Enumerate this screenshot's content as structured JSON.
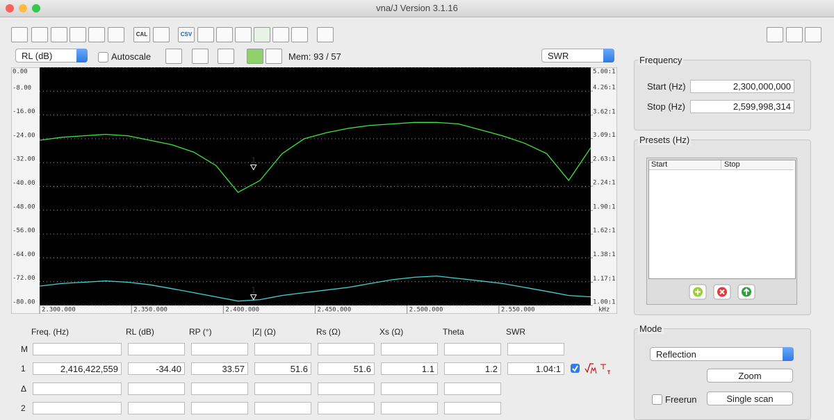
{
  "window": {
    "title": "vna/J Version 3.1.16"
  },
  "toolbar": {
    "labels": [
      "CAL",
      "CSV"
    ]
  },
  "controls": {
    "left_select": "RL (dB)",
    "autoscale": "Autoscale",
    "memory": "Mem: 93 / 57",
    "right_select": "SWR"
  },
  "chart_data": {
    "type": "line",
    "x_unit": "kHz",
    "x": [
      2300000,
      2312000,
      2324000,
      2336000,
      2348000,
      2360000,
      2372000,
      2384000,
      2396000,
      2408000,
      2420000,
      2432000,
      2444000,
      2456000,
      2468000,
      2480000,
      2492000,
      2504000,
      2516000,
      2528000,
      2540000,
      2552000,
      2564000,
      2576000,
      2588000,
      2600000
    ],
    "series": [
      {
        "color": "#3ce83c",
        "values": [
          -24.5,
          -23.5,
          -23,
          -22.5,
          -23,
          -24.5,
          -26,
          -28.5,
          -33,
          -42,
          -38,
          -29,
          -24,
          -22,
          -20.5,
          -19.5,
          -19,
          -18.5,
          -18.5,
          -19,
          -21,
          -23,
          -25.5,
          -29,
          -38,
          -27
        ]
      },
      {
        "color": "#3fd6d6",
        "axis": "y2",
        "values": [
          1.14,
          1.16,
          1.17,
          1.18,
          1.17,
          1.15,
          1.12,
          1.09,
          1.06,
          1.03,
          1.04,
          1.07,
          1.09,
          1.11,
          1.13,
          1.16,
          1.19,
          1.21,
          1.22,
          1.2,
          1.18,
          1.16,
          1.13,
          1.1,
          1.07,
          1.06
        ]
      }
    ],
    "markers": [
      {
        "label": "1",
        "x": 2416422.559,
        "rl": -34.4,
        "swr": 1.04
      }
    ],
    "xlim": [
      2300000,
      2600000
    ],
    "xticks": [
      {
        "value": 2300000,
        "label": "2.300.000"
      },
      {
        "value": 2350000,
        "label": "2.350.000"
      },
      {
        "value": 2400000,
        "label": "2.400.000"
      },
      {
        "value": 2450000,
        "label": "2.450.000"
      },
      {
        "value": 2500000,
        "label": "2.500.000"
      },
      {
        "value": 2550000,
        "label": "2.550.000"
      }
    ],
    "ylim": [
      -80,
      0
    ],
    "yticks": [
      {
        "value": 0,
        "label": "0.00"
      },
      {
        "value": -8,
        "label": "-8.00"
      },
      {
        "value": -16,
        "label": "-16.00"
      },
      {
        "value": -24,
        "label": "-24.00"
      },
      {
        "value": -32,
        "label": "-32.00"
      },
      {
        "value": -40,
        "label": "-40.00"
      },
      {
        "value": -48,
        "label": "-48.00"
      },
      {
        "value": -56,
        "label": "-56.00"
      },
      {
        "value": -64,
        "label": "-64.00"
      },
      {
        "value": -72,
        "label": "-72.00"
      },
      {
        "value": -80,
        "label": "-80.00"
      }
    ],
    "y2lim": [
      1,
      5
    ],
    "y2log": true,
    "y2ticks": [
      {
        "value": 5,
        "label": "5.00:1"
      },
      {
        "value": 4.26,
        "label": "4.26:1"
      },
      {
        "value": 3.62,
        "label": "3.62:1"
      },
      {
        "value": 3.09,
        "label": "3.09:1"
      },
      {
        "value": 2.63,
        "label": "2.63:1"
      },
      {
        "value": 2.24,
        "label": "2.24:1"
      },
      {
        "value": 1.9,
        "label": "1.90:1"
      },
      {
        "value": 1.62,
        "label": "1.62:1"
      },
      {
        "value": 1.38,
        "label": "1.38:1"
      },
      {
        "value": 1.17,
        "label": "1.17:1"
      },
      {
        "value": 1,
        "label": "1.00:1"
      }
    ],
    "grid": true
  },
  "table": {
    "headers": [
      "Freq. (Hz)",
      "RL (dB)",
      "RP (°)",
      "|Z| (Ω)",
      "Rs (Ω)",
      "Xs (Ω)",
      "Theta",
      "SWR"
    ],
    "rows": [
      {
        "label": "M"
      },
      {
        "label": "1",
        "cells": [
          "2,416,422,559",
          "-34.40",
          "33.57",
          "51.6",
          "51.6",
          "1.1",
          "1.2",
          "1.04:1"
        ]
      },
      {
        "label": "Δ"
      },
      {
        "label": "2"
      }
    ]
  },
  "frequency": {
    "title": "Frequency",
    "start_label": "Start (Hz)",
    "start": "2,300,000,000",
    "stop_label": "Stop (Hz)",
    "stop": "2,599,998,314"
  },
  "presets": {
    "title": "Presets (Hz)",
    "columns": [
      "Start",
      "Stop"
    ]
  },
  "mode": {
    "title": "Mode",
    "select": "Reflection",
    "zoom": "Zoom",
    "freerun": "Freerun",
    "single_scan": "Single scan"
  }
}
